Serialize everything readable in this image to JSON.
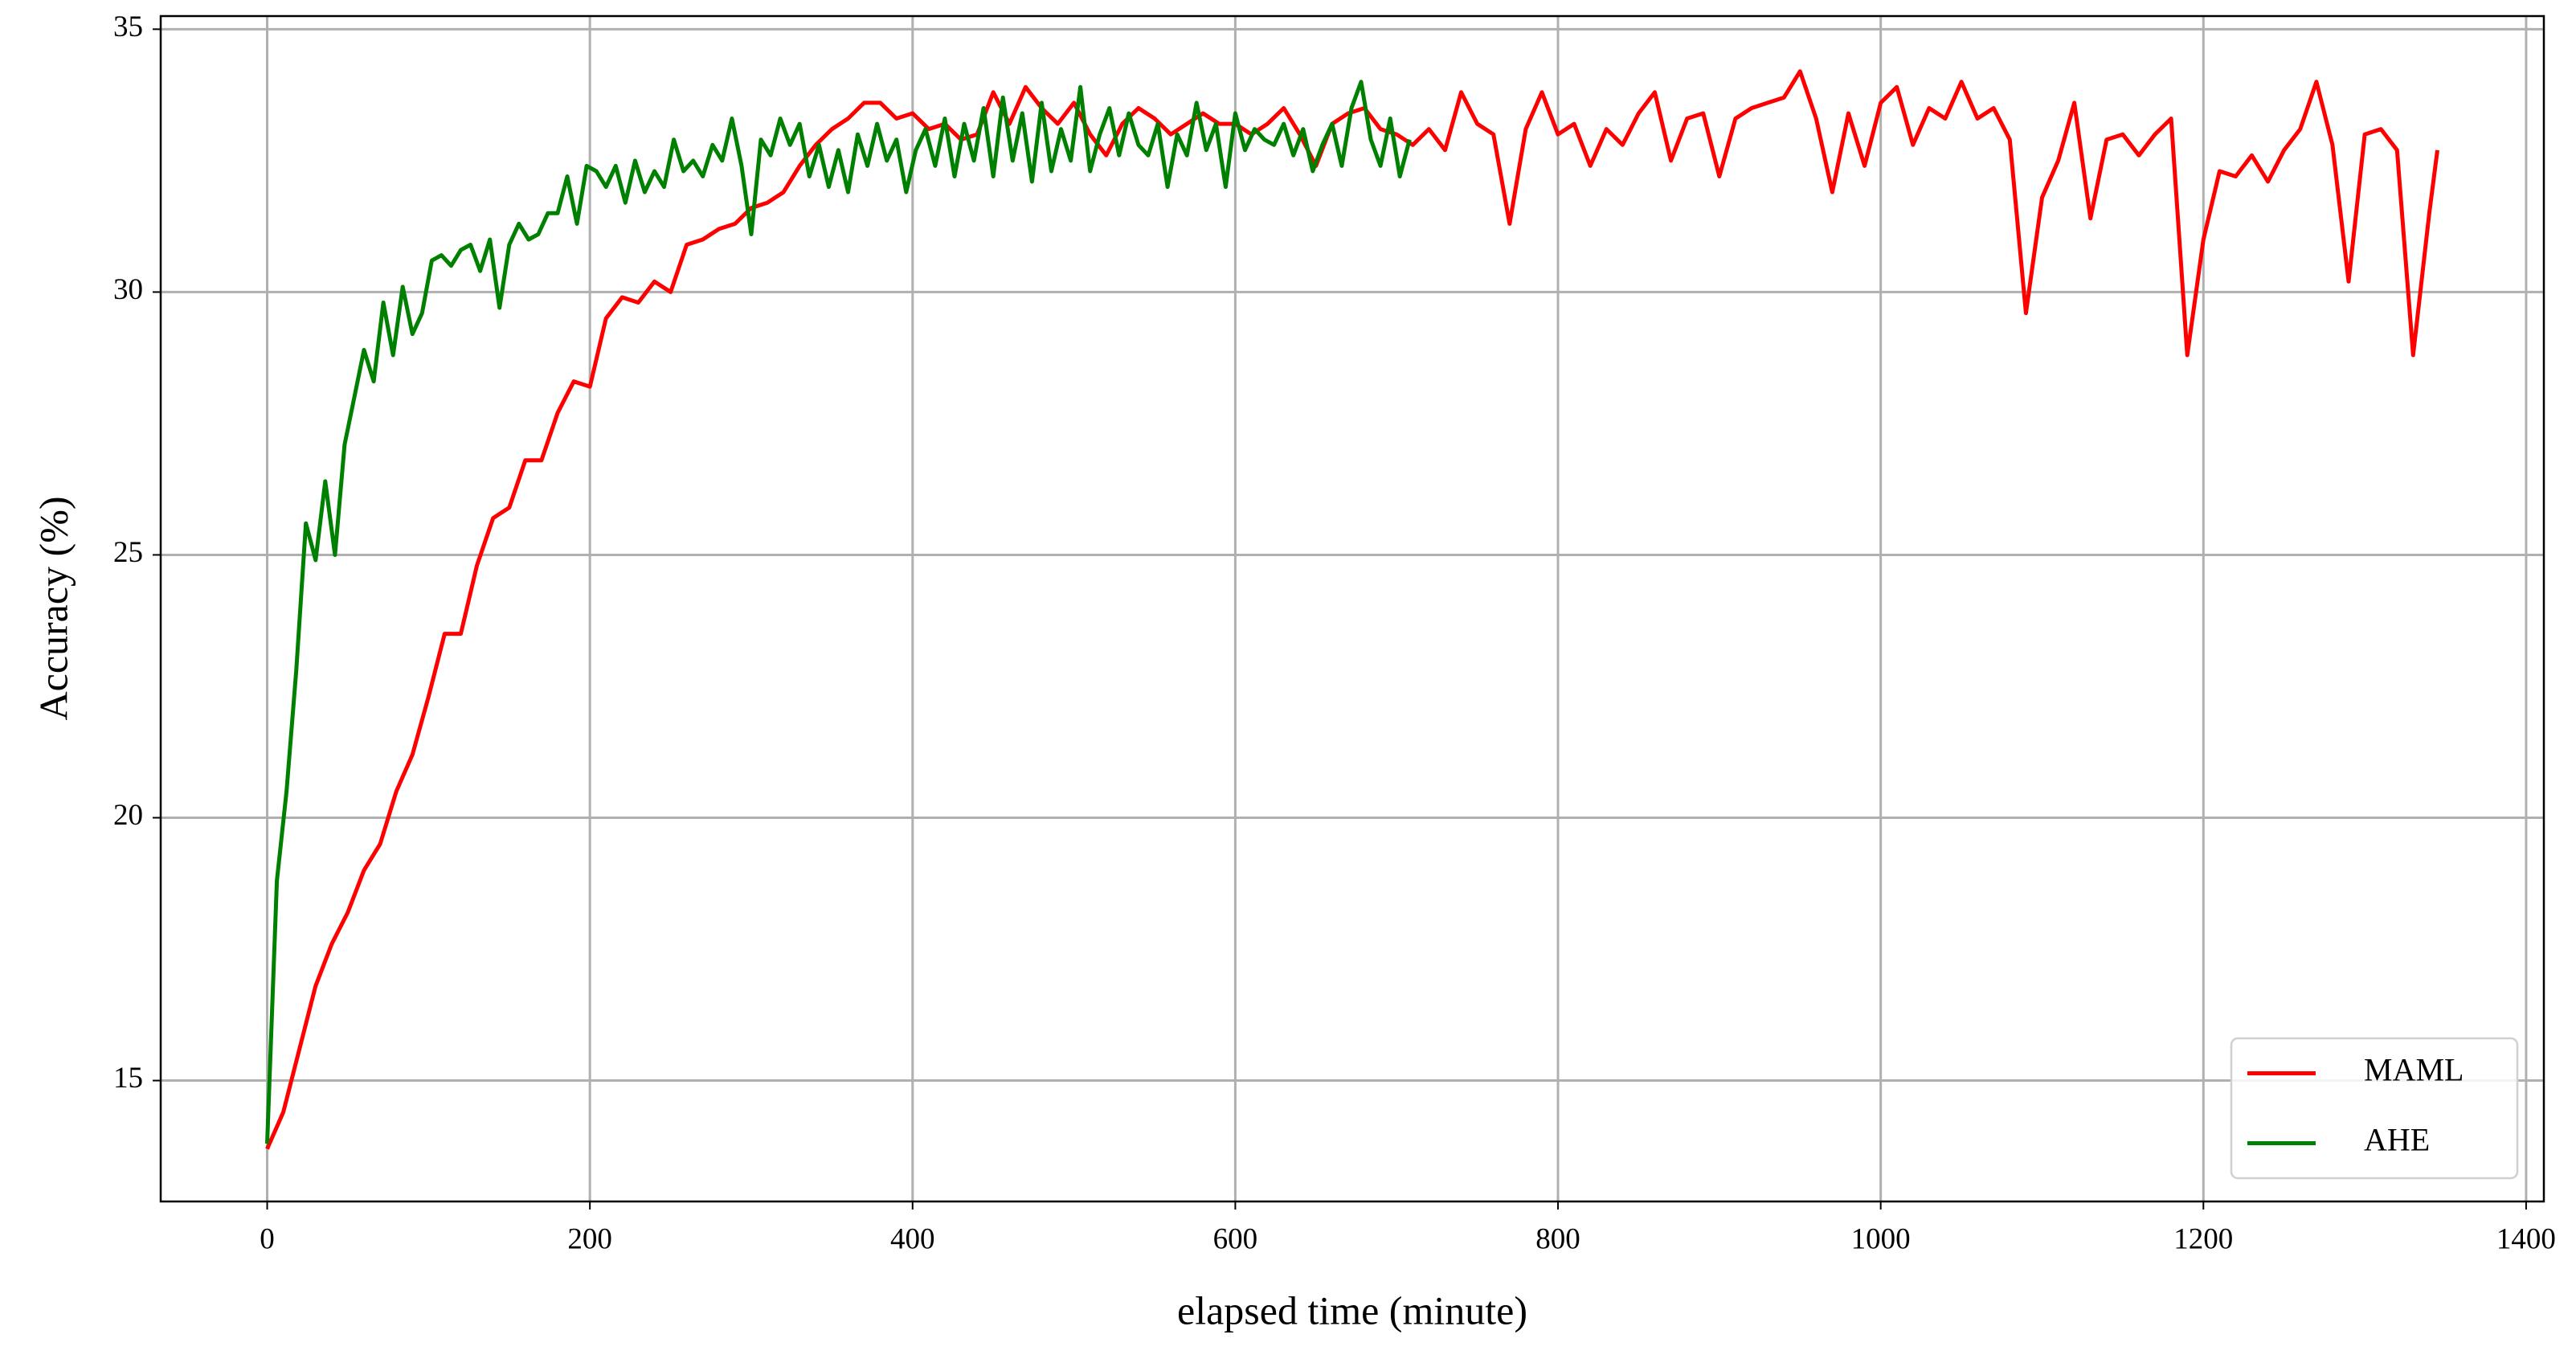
{
  "chart_data": {
    "type": "line",
    "xlabel": "elapsed time (minute)",
    "ylabel": "Accuracy (%)",
    "xlim": [
      -66,
      1411
    ],
    "ylim": [
      12.7,
      35.25
    ],
    "xticks": [
      0,
      200,
      400,
      600,
      800,
      1000,
      1200,
      1400
    ],
    "yticks": [
      15,
      20,
      25,
      30,
      35
    ],
    "grid": true,
    "legend": "lower right",
    "series": [
      {
        "name": "MAML",
        "color": "#ff0000",
        "x": [
          0,
          10,
          20,
          30,
          40,
          50,
          60,
          70,
          80,
          90,
          100,
          110,
          120,
          130,
          140,
          150,
          160,
          170,
          180,
          190,
          200,
          210,
          220,
          230,
          240,
          250,
          260,
          270,
          280,
          290,
          300,
          310,
          320,
          330,
          340,
          350,
          360,
          370,
          380,
          390,
          400,
          410,
          420,
          430,
          440,
          450,
          460,
          470,
          480,
          490,
          500,
          510,
          520,
          530,
          540,
          550,
          560,
          570,
          580,
          590,
          600,
          610,
          620,
          630,
          640,
          650,
          660,
          670,
          680,
          690,
          700,
          710,
          720,
          730,
          740,
          750,
          760,
          770,
          780,
          790,
          800,
          810,
          820,
          830,
          840,
          850,
          860,
          870,
          880,
          890,
          900,
          910,
          920,
          930,
          940,
          950,
          960,
          970,
          980,
          990,
          1000,
          1010,
          1020,
          1030,
          1040,
          1050,
          1060,
          1070,
          1080,
          1090,
          1100,
          1110,
          1120,
          1130,
          1140,
          1150,
          1160,
          1170,
          1180,
          1190,
          1200,
          1210,
          1220,
          1230,
          1240,
          1250,
          1260,
          1270,
          1280,
          1290,
          1300,
          1310,
          1320,
          1330,
          1340,
          1345
        ],
        "values": [
          13.7,
          14.4,
          15.6,
          16.8,
          17.6,
          18.2,
          19.0,
          19.5,
          20.5,
          21.2,
          22.3,
          23.5,
          23.5,
          24.8,
          25.7,
          25.9,
          26.8,
          26.8,
          27.7,
          28.3,
          28.2,
          29.5,
          29.9,
          29.8,
          30.2,
          30.0,
          30.9,
          31.0,
          31.2,
          31.3,
          31.6,
          31.7,
          31.9,
          32.4,
          32.8,
          33.1,
          33.3,
          33.6,
          33.6,
          33.3,
          33.4,
          33.1,
          33.2,
          32.9,
          33.0,
          33.8,
          33.2,
          33.9,
          33.5,
          33.2,
          33.6,
          33.0,
          32.6,
          33.2,
          33.5,
          33.3,
          33.0,
          33.2,
          33.4,
          33.2,
          33.2,
          33.0,
          33.2,
          33.5,
          33.0,
          32.4,
          33.2,
          33.4,
          33.5,
          33.1,
          33.0,
          32.8,
          33.1,
          32.7,
          33.8,
          33.2,
          33.0,
          31.3,
          33.1,
          33.8,
          33.0,
          33.2,
          32.4,
          33.1,
          32.8,
          33.4,
          33.8,
          32.5,
          33.3,
          33.4,
          32.2,
          33.3,
          33.5,
          33.6,
          33.7,
          34.2,
          33.3,
          31.9,
          33.4,
          32.4,
          33.6,
          33.9,
          32.8,
          33.5,
          33.3,
          34.0,
          33.3,
          33.5,
          32.9,
          29.6,
          31.8,
          32.5,
          33.6,
          31.4,
          32.9,
          33.0,
          32.6,
          33.0,
          33.3,
          28.8,
          31.0,
          32.3,
          32.2,
          32.6,
          32.1,
          32.7,
          33.1,
          34.0,
          32.8,
          30.2,
          33.0,
          33.1,
          32.7,
          28.8,
          31.5,
          32.7
        ]
      },
      {
        "name": "AHE",
        "color": "#008000",
        "x": [
          0,
          6,
          12,
          18,
          24,
          30,
          36,
          42,
          48,
          54,
          60,
          66,
          72,
          78,
          84,
          90,
          96,
          102,
          108,
          114,
          120,
          126,
          132,
          138,
          144,
          150,
          156,
          162,
          168,
          174,
          180,
          186,
          192,
          198,
          204,
          210,
          216,
          222,
          228,
          234,
          240,
          246,
          252,
          258,
          264,
          270,
          276,
          282,
          288,
          294,
          300,
          306,
          312,
          318,
          324,
          330,
          336,
          342,
          348,
          354,
          360,
          366,
          372,
          378,
          384,
          390,
          396,
          402,
          408,
          414,
          420,
          426,
          432,
          438,
          444,
          450,
          456,
          462,
          468,
          474,
          480,
          486,
          492,
          498,
          504,
          510,
          516,
          522,
          528,
          534,
          540,
          546,
          552,
          558,
          564,
          570,
          576,
          582,
          588,
          594,
          600,
          606,
          612,
          618,
          624,
          630,
          636,
          642,
          648,
          654,
          660,
          666,
          672,
          678,
          684,
          690,
          696,
          702,
          708
        ],
        "values": [
          13.8,
          18.8,
          20.5,
          22.8,
          25.6,
          24.9,
          26.4,
          25.0,
          27.1,
          28.0,
          28.9,
          28.3,
          29.8,
          28.8,
          30.1,
          29.2,
          29.6,
          30.6,
          30.7,
          30.5,
          30.8,
          30.9,
          30.4,
          31.0,
          29.7,
          30.9,
          31.3,
          31.0,
          31.1,
          31.5,
          31.5,
          32.2,
          31.3,
          32.4,
          32.3,
          32.0,
          32.4,
          31.7,
          32.5,
          31.9,
          32.3,
          32.0,
          32.9,
          32.3,
          32.5,
          32.2,
          32.8,
          32.5,
          33.3,
          32.4,
          31.1,
          32.9,
          32.6,
          33.3,
          32.8,
          33.2,
          32.2,
          32.8,
          32.0,
          32.7,
          31.9,
          33.0,
          32.4,
          33.2,
          32.5,
          32.9,
          31.9,
          32.7,
          33.1,
          32.4,
          33.3,
          32.2,
          33.2,
          32.5,
          33.5,
          32.2,
          33.7,
          32.5,
          33.4,
          32.1,
          33.6,
          32.3,
          33.1,
          32.5,
          33.9,
          32.3,
          33.0,
          33.5,
          32.6,
          33.4,
          32.8,
          32.6,
          33.2,
          32.0,
          33.0,
          32.6,
          33.6,
          32.7,
          33.2,
          32.0,
          33.4,
          32.7,
          33.1,
          32.9,
          32.8,
          33.2,
          32.6,
          33.1,
          32.3,
          32.8,
          33.2,
          32.4,
          33.5,
          34.0,
          32.9,
          32.4,
          33.3,
          32.2,
          32.9
        ]
      }
    ]
  }
}
